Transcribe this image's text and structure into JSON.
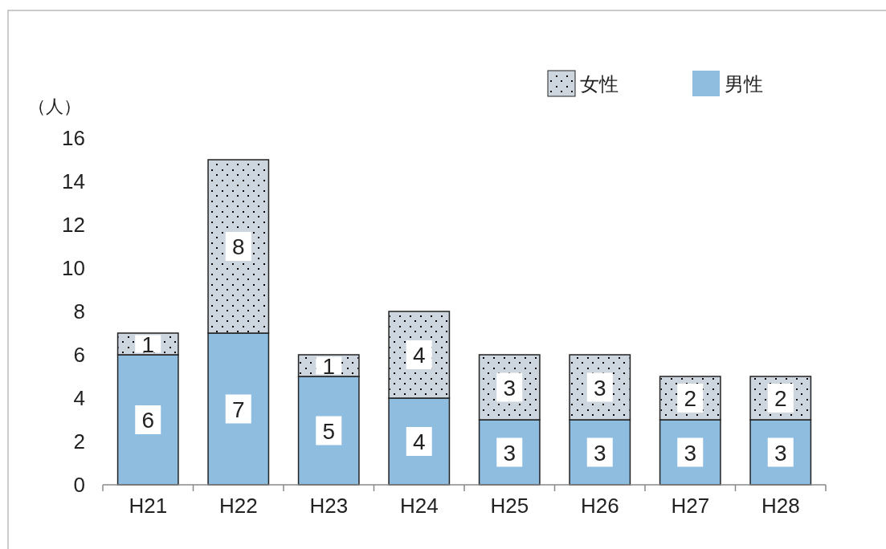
{
  "chart_data": {
    "type": "bar",
    "stacked": true,
    "ylabel": "（人）",
    "categories": [
      "H21",
      "H22",
      "H23",
      "H24",
      "H25",
      "H26",
      "H27",
      "H28"
    ],
    "series": [
      {
        "name": "男性",
        "color": "#8fbde0",
        "values": [
          6,
          7,
          5,
          4,
          3,
          3,
          3,
          3
        ]
      },
      {
        "name": "女性",
        "color": "#cdd5df",
        "values": [
          1,
          8,
          1,
          4,
          3,
          3,
          2,
          2
        ]
      }
    ],
    "ylim": [
      0,
      16
    ],
    "yticks": [
      0,
      2,
      4,
      6,
      8,
      10,
      12,
      14,
      16
    ],
    "data_labels": true,
    "legend": "top right",
    "grid": false
  }
}
